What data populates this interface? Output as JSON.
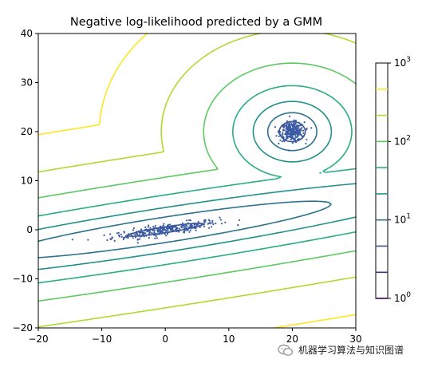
{
  "chart_data": {
    "type": "contour",
    "title": "Negative log-likelihood predicted by a GMM",
    "xlim": [
      -20,
      30
    ],
    "ylim": [
      -20,
      40
    ],
    "x_ticks": [
      "−20",
      "−10",
      "0",
      "10",
      "20",
      "30"
    ],
    "y_ticks": [
      "−20",
      "−10",
      "0",
      "10",
      "20",
      "30",
      "40"
    ],
    "x_tick_values": [
      -20,
      -10,
      0,
      10,
      20,
      30
    ],
    "y_tick_values": [
      -20,
      -10,
      0,
      10,
      20,
      30,
      40
    ],
    "colorbar": {
      "scale": "log",
      "range": [
        1,
        1000
      ],
      "tick_labels": [
        {
          "base": "10",
          "exp": "0",
          "value": 1
        },
        {
          "base": "10",
          "exp": "1",
          "value": 10
        },
        {
          "base": "10",
          "exp": "2",
          "value": 100
        },
        {
          "base": "10",
          "exp": "3",
          "value": 1000
        }
      ],
      "levels": [
        1.0,
        2.15,
        4.64,
        10.0,
        21.5,
        46.4,
        100.0,
        215.4,
        464.2
      ],
      "level_colors": [
        "#440154",
        "#472d7b",
        "#3b528b",
        "#2c728e",
        "#21918c",
        "#28ae80",
        "#5ec962",
        "#addc30",
        "#fde725"
      ]
    },
    "components": [
      {
        "mean": [
          0,
          0
        ],
        "description_axis_angle_deg": 8,
        "spread": [
          12,
          1.2
        ]
      },
      {
        "mean": [
          20,
          20
        ],
        "spread": [
          2.5,
          2.5
        ]
      }
    ],
    "grid": false,
    "legend": "none"
  },
  "watermark": {
    "text": "机器学习算法与知识图谱",
    "icon": "wechat-icon"
  }
}
